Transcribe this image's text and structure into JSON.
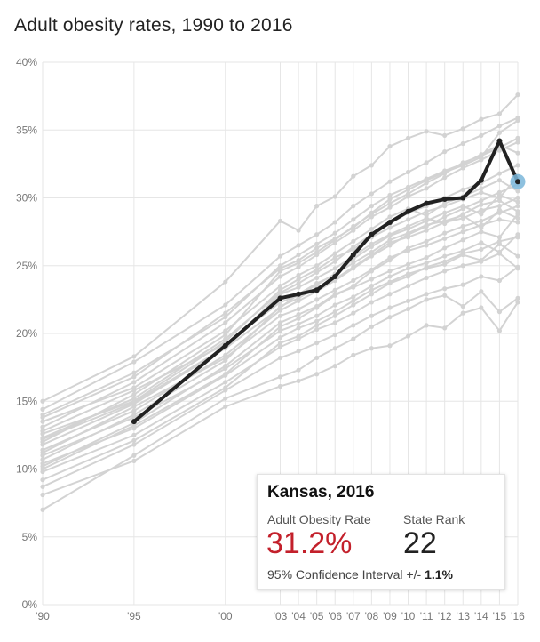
{
  "chart_data": {
    "type": "line",
    "title": "Adult obesity rates, 1990 to 2016",
    "xlabel": "",
    "ylabel": "",
    "ylim": [
      0,
      40
    ],
    "y_ticks": [
      "0%",
      "5%",
      "10%",
      "15%",
      "20%",
      "25%",
      "30%",
      "35%",
      "40%"
    ],
    "x_ticks": [
      {
        "year": 1990,
        "label": "'90"
      },
      {
        "year": 1995,
        "label": "'95"
      },
      {
        "year": 2000,
        "label": "'00"
      },
      {
        "year": 2003,
        "label": "'03"
      },
      {
        "year": 2004,
        "label": "'04"
      },
      {
        "year": 2005,
        "label": "'05"
      },
      {
        "year": 2006,
        "label": "'06"
      },
      {
        "year": 2007,
        "label": "'07"
      },
      {
        "year": 2008,
        "label": "'08"
      },
      {
        "year": 2009,
        "label": "'09"
      },
      {
        "year": 2010,
        "label": "'10"
      },
      {
        "year": 2011,
        "label": "'11"
      },
      {
        "year": 2012,
        "label": "'12"
      },
      {
        "year": 2013,
        "label": "'13"
      },
      {
        "year": 2014,
        "label": "'14"
      },
      {
        "year": 2015,
        "label": "'15"
      },
      {
        "year": 2016,
        "label": "'16"
      }
    ],
    "highlight": {
      "name": "Kansas",
      "color": "#222222",
      "points": [
        [
          1995,
          13.5
        ],
        [
          2000,
          19.1
        ],
        [
          2003,
          22.6
        ],
        [
          2004,
          22.9
        ],
        [
          2005,
          23.2
        ],
        [
          2006,
          24.2
        ],
        [
          2007,
          25.8
        ],
        [
          2008,
          27.3
        ],
        [
          2009,
          28.2
        ],
        [
          2010,
          29.0
        ],
        [
          2011,
          29.6
        ],
        [
          2012,
          29.9
        ],
        [
          2013,
          30.0
        ],
        [
          2014,
          31.3
        ],
        [
          2015,
          34.2
        ],
        [
          2016,
          31.2
        ]
      ],
      "end_marker_color": "#7ab6d9"
    },
    "background_color": "#d3d3d3",
    "background_series": [
      {
        "values": [
          10.0,
          13.2,
          17.0,
          20.5,
          21.1,
          21.9,
          22.8,
          23.5,
          24.6,
          25.4,
          26.3,
          26.8,
          27.4,
          27.9,
          28.3,
          28.9,
          29.4
        ]
      },
      {
        "values": [
          9.2,
          12.1,
          16.0,
          19.3,
          19.8,
          20.6,
          21.3,
          22.1,
          22.9,
          23.7,
          24.2,
          24.9,
          25.3,
          25.9,
          26.2,
          26.8,
          27.1
        ]
      },
      {
        "values": [
          11.4,
          14.3,
          18.4,
          21.7,
          22.4,
          23.1,
          23.9,
          24.8,
          25.7,
          26.5,
          27.3,
          27.9,
          28.6,
          29.2,
          29.8,
          30.4,
          31.0
        ]
      },
      {
        "values": [
          12.3,
          15.2,
          19.6,
          23.0,
          23.7,
          24.5,
          25.3,
          26.4,
          27.3,
          28.1,
          28.9,
          29.4,
          30.0,
          30.6,
          31.1,
          31.8,
          32.4
        ]
      },
      {
        "values": [
          13.1,
          16.4,
          20.8,
          24.2,
          24.9,
          25.8,
          26.7,
          27.6,
          28.6,
          29.3,
          30.1,
          30.7,
          31.5,
          32.2,
          32.8,
          33.5,
          34.1
        ]
      },
      {
        "values": [
          14.4,
          17.9,
          22.1,
          25.7,
          26.5,
          27.3,
          28.2,
          29.4,
          30.3,
          31.2,
          31.9,
          32.6,
          33.4,
          34.0,
          34.6,
          35.3,
          35.9
        ]
      },
      {
        "values": [
          15.0,
          18.3,
          23.8,
          28.3,
          27.6,
          29.4,
          30.1,
          31.6,
          32.4,
          33.8,
          34.4,
          34.9,
          34.6,
          35.1,
          35.8,
          36.2,
          37.6
        ]
      },
      {
        "values": [
          8.1,
          10.6,
          14.6,
          16.1,
          16.5,
          17.0,
          17.6,
          18.4,
          18.9,
          19.1,
          19.8,
          20.6,
          20.4,
          21.5,
          21.9,
          20.2,
          22.3
        ]
      },
      {
        "values": [
          7.0,
          11.0,
          15.2,
          16.8,
          17.3,
          18.2,
          18.9,
          19.6,
          20.5,
          21.2,
          21.8,
          22.5,
          22.8,
          22.0,
          23.1,
          21.6,
          22.6
        ]
      },
      {
        "values": [
          11.0,
          13.8,
          17.4,
          20.2,
          20.7,
          21.3,
          22.1,
          22.7,
          23.5,
          24.2,
          24.8,
          25.2,
          25.7,
          26.1,
          26.7,
          26.0,
          27.3
        ]
      },
      {
        "values": [
          10.4,
          13.0,
          16.9,
          19.7,
          20.4,
          20.9,
          21.6,
          22.4,
          23.2,
          23.8,
          24.4,
          24.8,
          25.1,
          25.8,
          25.4,
          26.6,
          25.7
        ]
      },
      {
        "values": [
          12.8,
          15.8,
          19.2,
          22.3,
          22.8,
          23.6,
          24.4,
          25.2,
          26.0,
          26.9,
          27.4,
          28.0,
          28.3,
          28.7,
          27.8,
          29.1,
          28.5
        ]
      },
      {
        "values": [
          13.5,
          16.0,
          20.2,
          23.5,
          24.3,
          25.0,
          25.9,
          26.8,
          27.7,
          28.6,
          29.2,
          28.7,
          29.6,
          30.1,
          30.7,
          31.3,
          30.5
        ]
      },
      {
        "values": [
          11.8,
          14.8,
          18.9,
          21.9,
          22.9,
          23.7,
          24.3,
          25.5,
          26.4,
          27.2,
          27.7,
          28.3,
          28.9,
          29.4,
          28.8,
          30.2,
          29.7
        ]
      },
      {
        "values": [
          9.8,
          12.5,
          16.4,
          19.0,
          19.6,
          20.3,
          20.8,
          21.5,
          22.3,
          22.9,
          23.5,
          24.1,
          24.6,
          25.0,
          25.3,
          25.9,
          24.8
        ]
      },
      {
        "values": [
          12.0,
          15.5,
          19.9,
          24.6,
          25.2,
          26.0,
          26.9,
          27.9,
          28.8,
          29.6,
          30.3,
          31.1,
          31.8,
          32.6,
          33.1,
          33.7,
          34.4
        ]
      },
      {
        "values": [
          10.7,
          14.0,
          18.0,
          22.0,
          22.6,
          23.4,
          24.0,
          24.9,
          25.8,
          26.7,
          27.1,
          27.6,
          28.2,
          28.5,
          29.1,
          29.4,
          30.0
        ]
      },
      {
        "values": [
          14.0,
          17.1,
          21.2,
          25.0,
          25.8,
          26.6,
          27.4,
          28.4,
          29.4,
          30.2,
          30.8,
          31.4,
          32.0,
          32.5,
          33.2,
          33.9,
          33.3
        ]
      },
      {
        "values": [
          12.6,
          15.0,
          19.4,
          23.2,
          24.0,
          24.7,
          25.6,
          26.2,
          27.1,
          27.8,
          28.4,
          29.0,
          29.4,
          29.9,
          30.4,
          30.0,
          31.6
        ]
      },
      {
        "values": [
          8.7,
          11.8,
          15.8,
          18.2,
          18.7,
          19.3,
          19.9,
          20.6,
          21.3,
          21.9,
          22.4,
          22.9,
          23.3,
          23.6,
          24.2,
          23.9,
          24.9
        ]
      },
      {
        "values": [
          11.2,
          14.6,
          18.2,
          21.3,
          21.8,
          22.5,
          23.2,
          23.9,
          24.7,
          25.6,
          26.1,
          26.5,
          27.0,
          27.5,
          28.0,
          28.4,
          28.2
        ]
      },
      {
        "values": [
          13.8,
          16.8,
          21.5,
          24.8,
          25.4,
          26.3,
          27.0,
          27.8,
          28.9,
          29.9,
          30.6,
          31.3,
          31.9,
          32.4,
          33.0,
          34.8,
          35.7
        ]
      },
      {
        "values": [
          10.2,
          13.4,
          17.6,
          20.8,
          21.4,
          22.0,
          22.9,
          23.4,
          24.0,
          24.6,
          25.1,
          25.6,
          26.3,
          26.9,
          27.5,
          27.1,
          28.8
        ]
      },
      {
        "values": [
          12.2,
          14.9,
          19.0,
          22.9,
          23.4,
          24.1,
          24.8,
          25.7,
          26.6,
          27.3,
          27.9,
          28.5,
          28.1,
          28.8,
          29.5,
          29.8,
          29.0
        ]
      }
    ]
  },
  "tooltip": {
    "title": "Kansas, 2016",
    "rate_label": "Adult Obesity Rate",
    "rate_value": "31.2%",
    "rank_label": "State Rank",
    "rank_value": "22",
    "ci_label": "95% Confidence Interval",
    "ci_prefix": "+/-",
    "ci_value": "1.1%"
  }
}
